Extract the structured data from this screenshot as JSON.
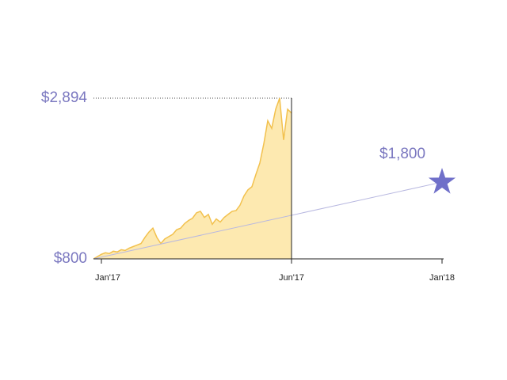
{
  "chart_data": {
    "type": "area",
    "x": [
      0,
      1,
      2,
      3,
      4,
      5,
      6,
      7,
      8,
      9,
      10,
      11,
      12,
      13,
      14,
      15,
      16,
      17,
      18,
      19,
      20,
      21,
      22,
      23,
      24,
      25,
      26,
      27,
      28,
      29,
      30,
      31,
      32,
      33,
      34,
      35,
      36,
      37,
      38,
      39,
      40,
      41,
      42,
      43,
      44,
      45,
      46,
      47,
      48,
      49,
      50
    ],
    "series": [
      {
        "color": "#f2c14e",
        "fill": "#fde9b0",
        "values": [
          800,
          830,
          860,
          880,
          870,
          900,
          890,
          920,
          910,
          940,
          960,
          980,
          1000,
          1080,
          1150,
          1200,
          1080,
          1000,
          1060,
          1090,
          1120,
          1180,
          1200,
          1260,
          1300,
          1330,
          1400,
          1420,
          1340,
          1380,
          1250,
          1320,
          1280,
          1340,
          1380,
          1420,
          1430,
          1500,
          1620,
          1700,
          1740,
          1900,
          2050,
          2300,
          2600,
          2500,
          2750,
          2894,
          2350,
          2750,
          2700
        ]
      },
      {
        "type": "line",
        "color": "#b8b8e0",
        "marker": "star",
        "marker_color": "#6f6fc9",
        "x": [
          0,
          88
        ],
        "values": [
          800,
          1800
        ],
        "value_labels": [
          null,
          "$1,800"
        ]
      }
    ],
    "xlim": [
      0,
      88
    ],
    "xticks": [
      {
        "value": 2,
        "label": "Jan'17"
      },
      {
        "value": 50,
        "label": "Jun'17"
      },
      {
        "value": 88,
        "label": "Jan'18"
      }
    ],
    "ylim": [
      800,
      2894
    ],
    "yticks": [
      {
        "value": 800,
        "label": "$800"
      },
      {
        "value": 2894,
        "label": "$2,894"
      }
    ]
  }
}
